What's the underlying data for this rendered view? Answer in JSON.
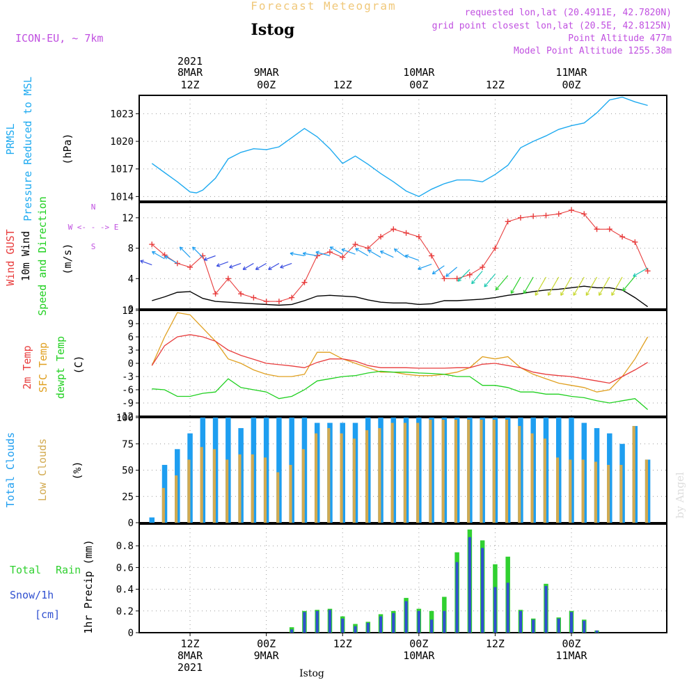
{
  "header": {
    "title": "Forecast Meteogram",
    "location": "Istog",
    "model": "ICON-EU, ~ 7km",
    "requested": "requested lon,lat (20.4911E, 42.7820N)",
    "gridpoint": "grid point closest lon,lat (20.5E, 42.8125N)",
    "point_altitude": "Point Altitude 477m",
    "model_altitude": "Model Point Altitude 1255.38m",
    "watermark": "by Angel",
    "footer_location": "Istog"
  },
  "top_axis": {
    "year": "2021",
    "ticks": [
      {
        "hour": 12,
        "date": "8MAR",
        "time": "12Z"
      },
      {
        "hour": 24,
        "date": "9MAR",
        "time": "00Z"
      },
      {
        "hour": 36,
        "date": "",
        "time": "12Z"
      },
      {
        "hour": 48,
        "date": "10MAR",
        "time": "00Z"
      },
      {
        "hour": 60,
        "date": "",
        "time": "12Z"
      },
      {
        "hour": 72,
        "date": "11MAR",
        "time": "00Z"
      }
    ]
  },
  "bottom_axis": {
    "year": "2021",
    "ticks": [
      {
        "hour": 12,
        "time": "12Z",
        "date": "8MAR"
      },
      {
        "hour": 24,
        "time": "00Z",
        "date": "9MAR"
      },
      {
        "hour": 36,
        "time": "12Z",
        "date": ""
      },
      {
        "hour": 48,
        "time": "00Z",
        "date": "10MAR"
      },
      {
        "hour": 60,
        "time": "12Z",
        "date": ""
      },
      {
        "hour": 72,
        "time": "00Z",
        "date": "11MAR"
      }
    ]
  },
  "colors": {
    "prmsl": "#1eaaf0",
    "gust": "#e83c3c",
    "wind": "#000000",
    "temp2m": "#e83c3c",
    "sfc": "#e0a020",
    "dew": "#20d020",
    "total_clouds": "#1e9ef0",
    "low_clouds": "#d2aa50",
    "rain": "#30d030",
    "snow": "#3050d0",
    "purple": "#c050e0"
  },
  "chart_data": [
    {
      "type": "line",
      "panel": "pressure",
      "labels": [
        "PRMSL",
        "Pressure Reduced to MSL",
        "(hPa)"
      ],
      "ylim": [
        1013.5,
        1025
      ],
      "yticks": [
        1014,
        1017,
        1020,
        1023
      ],
      "x": [
        6,
        8,
        10,
        12,
        13,
        14,
        16,
        18,
        20,
        22,
        24,
        26,
        28,
        30,
        32,
        34,
        36,
        38,
        40,
        42,
        44,
        46,
        48,
        50,
        52,
        54,
        56,
        58,
        60,
        62,
        64,
        66,
        68,
        70,
        72,
        74,
        76,
        78,
        80,
        82,
        84
      ],
      "series": [
        {
          "name": "PRMSL",
          "values": [
            1017.6,
            1016.6,
            1015.6,
            1014.5,
            1014.4,
            1014.7,
            1016.0,
            1018.1,
            1018.8,
            1019.2,
            1019.1,
            1019.4,
            1020.4,
            1021.4,
            1020.5,
            1019.2,
            1017.6,
            1018.4,
            1017.5,
            1016.5,
            1015.6,
            1014.6,
            1014.0,
            1014.8,
            1015.4,
            1015.8,
            1015.8,
            1015.6,
            1016.4,
            1017.4,
            1019.3,
            1020.0,
            1020.6,
            1021.3,
            1021.7,
            1022.0,
            1023.1,
            1024.5,
            1024.8,
            1024.3,
            1023.9
          ]
        }
      ]
    },
    {
      "type": "line",
      "panel": "wind",
      "labels": [
        "Wind GUST",
        "10m Wind",
        "Speed and Direction",
        "(m/s)"
      ],
      "ylim": [
        0,
        14
      ],
      "yticks": [
        0,
        4,
        8,
        12
      ],
      "compass": [
        "N",
        "W <- - -> E",
        "S"
      ],
      "x": [
        6,
        8,
        10,
        12,
        14,
        16,
        18,
        20,
        22,
        24,
        26,
        28,
        30,
        32,
        34,
        36,
        38,
        40,
        42,
        44,
        46,
        48,
        50,
        52,
        54,
        56,
        58,
        60,
        62,
        64,
        66,
        68,
        70,
        72,
        74,
        76,
        78,
        80,
        82,
        84
      ],
      "series": [
        {
          "name": "Wind GUST",
          "values": [
            8.5,
            7.1,
            6.0,
            5.5,
            7.0,
            2.0,
            4.0,
            2.0,
            1.5,
            1.0,
            1.0,
            1.5,
            3.5,
            7.0,
            7.5,
            6.8,
            8.5,
            8.0,
            9.5,
            10.5,
            10.0,
            9.5,
            7.0,
            4.0,
            4.0,
            4.5,
            5.5,
            8.0,
            11.5,
            12.0,
            12.2,
            12.3,
            12.5,
            13.0,
            12.5,
            10.5,
            10.5,
            9.5,
            8.8,
            5.0
          ]
        },
        {
          "name": "10m Wind",
          "values": [
            1.1,
            1.6,
            2.2,
            2.3,
            1.4,
            1.0,
            0.9,
            0.8,
            0.7,
            0.6,
            0.5,
            0.6,
            1.1,
            1.7,
            1.8,
            1.7,
            1.6,
            1.2,
            0.9,
            0.8,
            0.8,
            0.6,
            0.7,
            1.1,
            1.1,
            1.2,
            1.3,
            1.5,
            1.8,
            2.0,
            2.3,
            2.5,
            2.6,
            2.8,
            3.0,
            2.8,
            2.8,
            2.5,
            1.5,
            0.3
          ]
        }
      ],
      "arrow_dirs_deg": [
        250,
        240,
        240,
        225,
        225,
        290,
        290,
        290,
        300,
        300,
        300,
        290,
        260,
        260,
        255,
        240,
        250,
        240,
        240,
        245,
        235,
        250,
        290,
        305,
        310,
        315,
        320,
        320,
        320,
        330,
        330,
        330,
        330,
        330,
        330,
        330,
        330,
        330,
        320,
        300
      ],
      "arrow_speeds": [
        3,
        4,
        4,
        4,
        4,
        3,
        3,
        3,
        3,
        3,
        3,
        3,
        4,
        4,
        4,
        4,
        4,
        4,
        4,
        4,
        4,
        4,
        4,
        4,
        4,
        5,
        5,
        5,
        6,
        6,
        6,
        7,
        7,
        7,
        7,
        7,
        7,
        7,
        6,
        5
      ],
      "arrow_y": [
        5.8,
        6.6,
        6.0,
        6.8,
        6.8,
        7.0,
        6.2,
        6.0,
        6.0,
        6.0,
        6.0,
        6.0,
        7.0,
        7.0,
        7.0,
        7.2,
        7.2,
        7.0,
        6.8,
        6.8,
        6.8,
        6.4,
        5.9,
        5.7,
        5.5,
        5.2,
        5.0,
        4.6,
        4.4,
        4.2,
        4.2,
        4.2,
        4.2,
        4.2,
        4.2,
        4.2,
        4.2,
        4.2,
        4.3,
        5.4
      ]
    },
    {
      "type": "line",
      "panel": "temperature",
      "labels": [
        "2m Temp",
        "SFC Temp",
        "dewpt Temp",
        "(C)"
      ],
      "ylim": [
        -12,
        12
      ],
      "yticks": [
        -12,
        -9,
        -6,
        -3,
        0,
        3,
        6,
        9,
        12
      ],
      "x": [
        6,
        8,
        10,
        12,
        14,
        16,
        18,
        20,
        22,
        24,
        26,
        28,
        30,
        32,
        34,
        36,
        38,
        40,
        42,
        44,
        46,
        48,
        50,
        52,
        54,
        56,
        58,
        60,
        62,
        64,
        66,
        68,
        70,
        72,
        74,
        76,
        78,
        80,
        82,
        84
      ],
      "series": [
        {
          "name": "2m Temp",
          "values": [
            -0.5,
            4.0,
            6.0,
            6.5,
            6.0,
            5.0,
            3.0,
            1.8,
            0.9,
            0.0,
            -0.3,
            -0.6,
            -1.0,
            0.2,
            1.0,
            1.0,
            0.5,
            -0.5,
            -1.0,
            -1.0,
            -1.0,
            -1.1,
            -1.1,
            -1.1,
            -1.0,
            -1.0,
            -0.2,
            0.0,
            -0.5,
            -1.0,
            -2.0,
            -2.5,
            -2.8,
            -3.0,
            -3.5,
            -4.0,
            -4.5,
            -3.0,
            -1.5,
            0.2
          ]
        },
        {
          "name": "SFC Temp",
          "values": [
            -0.5,
            6.0,
            11.5,
            11.0,
            8.0,
            5.0,
            1.0,
            0.0,
            -1.5,
            -2.5,
            -3.0,
            -3.0,
            -2.5,
            2.5,
            2.5,
            1.0,
            0.0,
            -1.0,
            -2.0,
            -2.0,
            -2.5,
            -2.8,
            -2.8,
            -2.5,
            -2.0,
            -1.0,
            1.5,
            1.0,
            1.5,
            -1.0,
            -2.5,
            -3.5,
            -4.5,
            -5.0,
            -5.5,
            -6.5,
            -6.0,
            -3.0,
            1.0,
            6.0
          ]
        },
        {
          "name": "dewpt Temp",
          "values": [
            -5.8,
            -6.0,
            -7.5,
            -7.5,
            -6.8,
            -6.5,
            -3.5,
            -5.5,
            -6.0,
            -6.5,
            -8.0,
            -7.5,
            -6.0,
            -4.0,
            -3.5,
            -3.0,
            -2.8,
            -2.2,
            -1.8,
            -2.0,
            -2.0,
            -2.2,
            -2.3,
            -2.5,
            -3.0,
            -3.0,
            -5.0,
            -5.0,
            -5.5,
            -6.5,
            -6.5,
            -7.0,
            -7.0,
            -7.5,
            -7.8,
            -8.5,
            -9.0,
            -8.5,
            -8.0,
            -10.5
          ]
        }
      ]
    },
    {
      "type": "bar",
      "panel": "clouds",
      "labels": [
        "Total Clouds",
        "Low Clouds",
        "(%)"
      ],
      "ylim": [
        0,
        100
      ],
      "yticks": [
        0,
        25,
        50,
        75,
        100
      ],
      "x": [
        6,
        8,
        10,
        12,
        14,
        16,
        18,
        20,
        22,
        24,
        26,
        28,
        30,
        32,
        34,
        36,
        38,
        40,
        42,
        44,
        46,
        48,
        50,
        52,
        54,
        56,
        58,
        60,
        62,
        64,
        66,
        68,
        70,
        72,
        74,
        76,
        78,
        80,
        82,
        84
      ],
      "series": [
        {
          "name": "Total Clouds",
          "values": [
            5,
            55,
            70,
            85,
            100,
            100,
            100,
            90,
            100,
            100,
            100,
            100,
            100,
            95,
            95,
            95,
            95,
            100,
            100,
            100,
            100,
            100,
            100,
            100,
            100,
            100,
            100,
            100,
            100,
            100,
            100,
            100,
            100,
            100,
            95,
            90,
            85,
            75,
            92,
            60
          ]
        },
        {
          "name": "Low Clouds",
          "values": [
            0,
            33,
            45,
            60,
            72,
            70,
            60,
            65,
            65,
            62,
            48,
            55,
            70,
            85,
            90,
            85,
            80,
            88,
            90,
            95,
            95,
            95,
            98,
            98,
            98,
            98,
            98,
            98,
            98,
            92,
            85,
            80,
            62,
            60,
            60,
            58,
            55,
            55,
            92,
            60
          ]
        }
      ]
    },
    {
      "type": "bar",
      "panel": "precip",
      "labels": [
        "1hr Precip (mm)"
      ],
      "legend": [
        "Total",
        "Rain",
        "Snow/1h",
        "[cm]"
      ],
      "ylim": [
        0,
        1.0
      ],
      "yticks": [
        0,
        0.2,
        0.4,
        0.6,
        0.8
      ],
      "x": [
        6,
        8,
        10,
        12,
        14,
        16,
        18,
        20,
        22,
        24,
        26,
        28,
        30,
        32,
        34,
        36,
        38,
        40,
        42,
        44,
        46,
        48,
        50,
        52,
        54,
        56,
        58,
        60,
        62,
        64,
        66,
        68,
        70,
        72,
        74,
        76,
        78,
        80,
        82,
        84
      ],
      "series": [
        {
          "name": "Total",
          "values": [
            0,
            0,
            0,
            0,
            0,
            0,
            0,
            0,
            0,
            0,
            0,
            0.05,
            0.2,
            0.21,
            0.22,
            0.15,
            0.08,
            0.1,
            0.17,
            0.2,
            0.32,
            0.22,
            0.2,
            0.33,
            0.74,
            0.95,
            0.85,
            0.63,
            0.7,
            0.21,
            0.13,
            0.45,
            0.14,
            0.2,
            0.12,
            0.02,
            0,
            0,
            0,
            0
          ]
        },
        {
          "name": "Snow/1h",
          "values": [
            0,
            0,
            0,
            0,
            0,
            0,
            0,
            0,
            0,
            0,
            0,
            0.03,
            0.19,
            0.2,
            0.21,
            0.13,
            0.06,
            0.09,
            0.15,
            0.18,
            0.29,
            0.2,
            0.12,
            0.2,
            0.65,
            0.88,
            0.78,
            0.42,
            0.46,
            0.2,
            0.12,
            0.43,
            0.13,
            0.19,
            0.11,
            0.02,
            0,
            0,
            0,
            0
          ]
        }
      ]
    }
  ]
}
